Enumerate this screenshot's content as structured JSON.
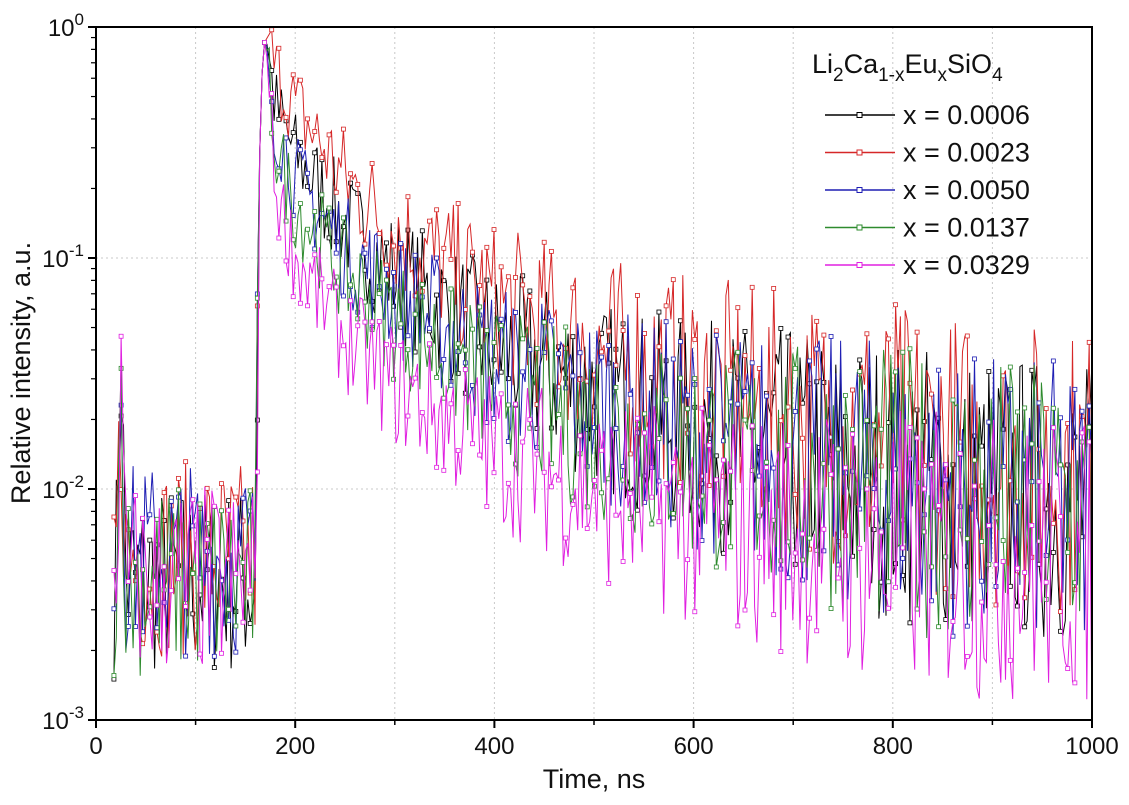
{
  "chart_data": {
    "type": "line",
    "title": "",
    "xlabel": "Time, ns",
    "ylabel": "Relative intensity, a.u.",
    "xlim": [
      0,
      1000
    ],
    "ylim": [
      0.001,
      1
    ],
    "yscale": "log",
    "grid": true,
    "x_ticks": [
      0,
      200,
      400,
      600,
      800,
      1000
    ],
    "x_tick_labels": [
      "0",
      "200",
      "400",
      "600",
      "800",
      "1000"
    ],
    "y_ticks": [
      0.001,
      0.01,
      0.1,
      1
    ],
    "y_tick_labels": [
      {
        "base": "10",
        "exp": "-3"
      },
      {
        "base": "10",
        "exp": "-2"
      },
      {
        "base": "10",
        "exp": "-1"
      },
      {
        "base": "10",
        "exp": "0"
      }
    ],
    "legend": {
      "position": "top-right",
      "title_parts": [
        {
          "text": "Li",
          "sub": false
        },
        {
          "text": "2",
          "sub": true
        },
        {
          "text": "Ca",
          "sub": false
        },
        {
          "text": "1-x",
          "sub": true
        },
        {
          "text": "Eu",
          "sub": false
        },
        {
          "text": "x",
          "sub": true
        },
        {
          "text": "SiO",
          "sub": false
        },
        {
          "text": "4",
          "sub": true
        }
      ]
    },
    "series": [
      {
        "name": "x = 0.0006",
        "color": "#000000",
        "x": [
          20,
          25,
          30,
          160,
          165,
          170,
          180,
          200,
          250,
          300,
          400,
          500,
          600,
          700,
          800,
          900,
          1000
        ],
        "values": [
          0.004,
          0.04,
          0.004,
          0.004,
          0.5,
          0.95,
          0.45,
          0.28,
          0.14,
          0.085,
          0.042,
          0.026,
          0.018,
          0.014,
          0.011,
          0.0095,
          0.0085
        ]
      },
      {
        "name": "x = 0.0023",
        "color": "#d62728",
        "x": [
          20,
          25,
          30,
          160,
          165,
          170,
          180,
          200,
          250,
          300,
          400,
          500,
          600,
          700,
          800,
          900,
          1000
        ],
        "values": [
          0.005,
          0.02,
          0.005,
          0.005,
          0.5,
          0.95,
          0.65,
          0.45,
          0.22,
          0.13,
          0.065,
          0.04,
          0.028,
          0.02,
          0.016,
          0.013,
          0.012
        ]
      },
      {
        "name": "x = 0.0050",
        "color": "#1f1fb4",
        "x": [
          20,
          25,
          30,
          160,
          165,
          170,
          180,
          200,
          250,
          300,
          400,
          500,
          600,
          700,
          800,
          900,
          1000
        ],
        "values": [
          0.005,
          0.035,
          0.005,
          0.005,
          0.5,
          0.95,
          0.38,
          0.22,
          0.11,
          0.07,
          0.036,
          0.024,
          0.017,
          0.013,
          0.011,
          0.009,
          0.0085
        ]
      },
      {
        "name": "x = 0.0137",
        "color": "#2e8b2e",
        "x": [
          20,
          25,
          30,
          160,
          165,
          170,
          180,
          200,
          250,
          300,
          400,
          500,
          600,
          700,
          800,
          900,
          1000
        ],
        "values": [
          0.004,
          0.03,
          0.004,
          0.004,
          0.5,
          0.95,
          0.3,
          0.17,
          0.085,
          0.055,
          0.028,
          0.019,
          0.014,
          0.012,
          0.01,
          0.009,
          0.008
        ]
      },
      {
        "name": "x = 0.0329",
        "color": "#e020e0",
        "x": [
          20,
          25,
          30,
          160,
          165,
          170,
          180,
          200,
          250,
          300,
          400,
          500,
          600,
          700,
          800,
          900,
          1000
        ],
        "values": [
          0.004,
          0.025,
          0.004,
          0.004,
          0.5,
          0.95,
          0.2,
          0.1,
          0.045,
          0.028,
          0.015,
          0.01,
          0.0075,
          0.0065,
          0.0055,
          0.005,
          0.0048
        ]
      }
    ]
  }
}
